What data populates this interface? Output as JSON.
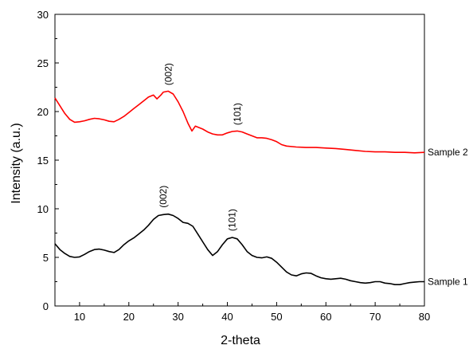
{
  "chart_data": {
    "type": "line",
    "title": "",
    "xlabel": "2-theta",
    "ylabel": "Intensity (a.u.)",
    "xlim": [
      5,
      80
    ],
    "ylim": [
      0,
      30
    ],
    "x_ticks": [
      10,
      20,
      30,
      40,
      50,
      60,
      70,
      80
    ],
    "y_ticks": [
      0,
      5,
      10,
      15,
      20,
      25,
      30
    ],
    "grid": false,
    "legend": "none",
    "series": [
      {
        "name": "Sample 1",
        "color": "#000000",
        "points": [
          [
            5,
            6.4
          ],
          [
            6,
            5.8
          ],
          [
            7,
            5.4
          ],
          [
            8,
            5.1
          ],
          [
            9,
            5.0
          ],
          [
            10,
            5.05
          ],
          [
            11,
            5.3
          ],
          [
            12,
            5.6
          ],
          [
            13,
            5.8
          ],
          [
            14,
            5.85
          ],
          [
            15,
            5.75
          ],
          [
            16,
            5.6
          ],
          [
            17,
            5.5
          ],
          [
            18,
            5.8
          ],
          [
            19,
            6.3
          ],
          [
            20,
            6.7
          ],
          [
            21,
            7.0
          ],
          [
            22,
            7.4
          ],
          [
            23,
            7.8
          ],
          [
            24,
            8.3
          ],
          [
            25,
            8.9
          ],
          [
            26,
            9.3
          ],
          [
            27,
            9.4
          ],
          [
            28,
            9.45
          ],
          [
            29,
            9.3
          ],
          [
            30,
            9.0
          ],
          [
            31,
            8.6
          ],
          [
            32,
            8.5
          ],
          [
            33,
            8.2
          ],
          [
            34,
            7.4
          ],
          [
            35,
            6.6
          ],
          [
            36,
            5.8
          ],
          [
            37,
            5.2
          ],
          [
            38,
            5.6
          ],
          [
            39,
            6.3
          ],
          [
            40,
            6.9
          ],
          [
            41,
            7.05
          ],
          [
            42,
            6.9
          ],
          [
            43,
            6.3
          ],
          [
            44,
            5.6
          ],
          [
            45,
            5.2
          ],
          [
            46,
            5.0
          ],
          [
            47,
            4.95
          ],
          [
            48,
            5.05
          ],
          [
            49,
            4.9
          ],
          [
            50,
            4.5
          ],
          [
            51,
            4.0
          ],
          [
            52,
            3.5
          ],
          [
            53,
            3.2
          ],
          [
            54,
            3.1
          ],
          [
            55,
            3.3
          ],
          [
            56,
            3.4
          ],
          [
            57,
            3.35
          ],
          [
            58,
            3.1
          ],
          [
            59,
            2.9
          ],
          [
            60,
            2.8
          ],
          [
            61,
            2.75
          ],
          [
            62,
            2.8
          ],
          [
            63,
            2.85
          ],
          [
            64,
            2.75
          ],
          [
            65,
            2.6
          ],
          [
            66,
            2.5
          ],
          [
            67,
            2.4
          ],
          [
            68,
            2.35
          ],
          [
            69,
            2.4
          ],
          [
            70,
            2.5
          ],
          [
            71,
            2.5
          ],
          [
            72,
            2.35
          ],
          [
            73,
            2.3
          ],
          [
            74,
            2.2
          ],
          [
            75,
            2.2
          ],
          [
            76,
            2.3
          ],
          [
            77,
            2.4
          ],
          [
            78,
            2.45
          ],
          [
            79,
            2.5
          ],
          [
            80,
            2.5
          ]
        ]
      },
      {
        "name": "Sample 2",
        "color": "#ff0000",
        "points": [
          [
            5,
            21.4
          ],
          [
            6,
            20.6
          ],
          [
            7,
            19.8
          ],
          [
            8,
            19.2
          ],
          [
            9,
            18.9
          ],
          [
            10,
            18.95
          ],
          [
            11,
            19.05
          ],
          [
            12,
            19.2
          ],
          [
            13,
            19.3
          ],
          [
            14,
            19.25
          ],
          [
            15,
            19.15
          ],
          [
            16,
            19.0
          ],
          [
            17,
            18.95
          ],
          [
            18,
            19.2
          ],
          [
            19,
            19.5
          ],
          [
            20,
            19.9
          ],
          [
            21,
            20.3
          ],
          [
            22,
            20.7
          ],
          [
            23,
            21.1
          ],
          [
            24,
            21.5
          ],
          [
            25,
            21.7
          ],
          [
            25.7,
            21.3
          ],
          [
            26.5,
            21.7
          ],
          [
            27,
            22.0
          ],
          [
            28,
            22.1
          ],
          [
            29,
            21.8
          ],
          [
            30,
            21.0
          ],
          [
            31,
            20.0
          ],
          [
            32,
            18.8
          ],
          [
            32.8,
            18.0
          ],
          [
            33.5,
            18.5
          ],
          [
            34,
            18.4
          ],
          [
            35,
            18.2
          ],
          [
            36,
            17.9
          ],
          [
            37,
            17.7
          ],
          [
            38,
            17.6
          ],
          [
            39,
            17.6
          ],
          [
            40,
            17.8
          ],
          [
            41,
            17.95
          ],
          [
            42,
            18.0
          ],
          [
            43,
            17.9
          ],
          [
            44,
            17.7
          ],
          [
            45,
            17.5
          ],
          [
            46,
            17.3
          ],
          [
            47,
            17.3
          ],
          [
            48,
            17.25
          ],
          [
            49,
            17.1
          ],
          [
            50,
            16.9
          ],
          [
            51,
            16.6
          ],
          [
            52,
            16.45
          ],
          [
            54,
            16.35
          ],
          [
            56,
            16.3
          ],
          [
            58,
            16.3
          ],
          [
            60,
            16.25
          ],
          [
            62,
            16.2
          ],
          [
            64,
            16.1
          ],
          [
            66,
            16.0
          ],
          [
            68,
            15.9
          ],
          [
            70,
            15.85
          ],
          [
            72,
            15.85
          ],
          [
            74,
            15.8
          ],
          [
            76,
            15.8
          ],
          [
            78,
            15.75
          ],
          [
            80,
            15.8
          ]
        ]
      }
    ],
    "annotations": [
      {
        "text": "(002)",
        "x": 27,
        "y": 10.1,
        "series": "Sample 1"
      },
      {
        "text": "(101)",
        "x": 41,
        "y": 7.7,
        "series": "Sample 1"
      },
      {
        "text": "(002)",
        "x": 28,
        "y": 22.7,
        "series": "Sample 2"
      },
      {
        "text": "(101)",
        "x": 42,
        "y": 18.6,
        "series": "Sample 2"
      }
    ]
  }
}
